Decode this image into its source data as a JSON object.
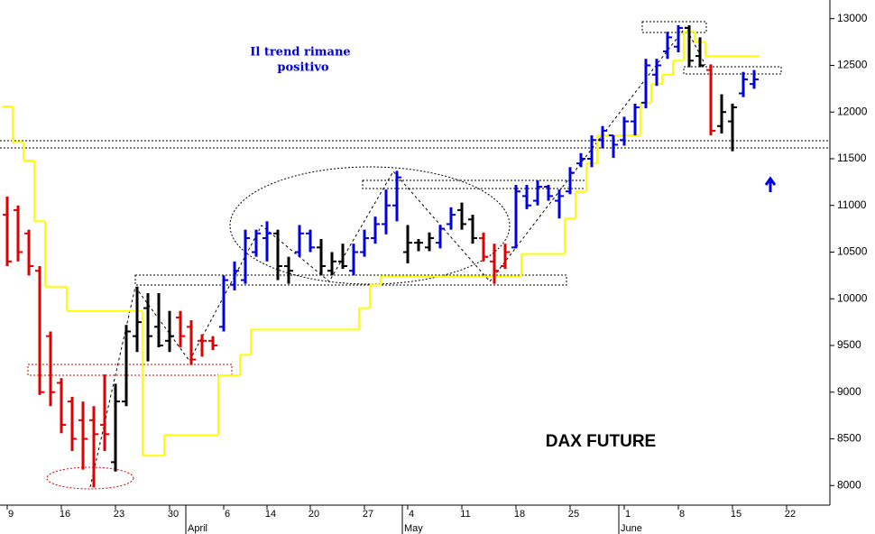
{
  "chart_data": {
    "type": "ohlc",
    "title": "DAX FUTURE",
    "annotation": [
      "Il trend rimane",
      "positivo"
    ],
    "categories": [
      "9",
      null,
      null,
      null,
      null,
      "16",
      null,
      null,
      null,
      null,
      "23",
      null,
      null,
      null,
      null,
      "30",
      null,
      null,
      null,
      null,
      "6",
      null,
      null,
      null,
      "14",
      null,
      null,
      null,
      "20",
      null,
      null,
      null,
      null,
      "27",
      null,
      null,
      null,
      "4",
      null,
      null,
      null,
      null,
      "11",
      null,
      null,
      null,
      null,
      "18",
      null,
      null,
      null,
      null,
      "25",
      null,
      null,
      null,
      null,
      "1",
      null,
      null,
      null,
      null,
      "8",
      null,
      null,
      null,
      null,
      "15",
      null,
      null,
      null,
      null,
      "22",
      null
    ],
    "month_labels": [
      {
        "label": "April",
        "index": 17
      },
      {
        "label": "May",
        "index": 37
      },
      {
        "label": "June",
        "index": 57
      }
    ],
    "open": [
      10900,
      10950,
      10700,
      10300,
      9600,
      9100,
      8900,
      8700,
      8700,
      8650,
      8250,
      8900,
      9600,
      9900,
      9700,
      9550,
      9800,
      9700,
      9550,
      9550,
      9700,
      10150,
      10200,
      10500,
      10650,
      10700,
      10350,
      10500,
      10700,
      10550,
      10300,
      10400,
      10300,
      10500,
      10650,
      10800,
      11000,
      10500,
      10600,
      10550,
      10600,
      10800,
      10950,
      10850,
      10650,
      10400,
      10350,
      10550,
      11100,
      11050,
      11200,
      11050,
      11150,
      11450,
      11500,
      11700,
      11750,
      11700,
      11900,
      12100,
      12400,
      12650,
      12700,
      12900,
      12600,
      12450,
      11850,
      11900,
      12200,
      12300,
      null,
      null,
      null,
      null
    ],
    "high": [
      11095,
      11000,
      10740,
      10350,
      9650,
      9150,
      8950,
      8900,
      8850,
      9190,
      9090,
      9720,
      10130,
      10060,
      10060,
      9870,
      9870,
      9770,
      9620,
      9600,
      10250,
      10400,
      10740,
      10740,
      10830,
      10740,
      10450,
      10790,
      10740,
      10640,
      10500,
      10590,
      10590,
      10740,
      10880,
      11170,
      11370,
      10790,
      10640,
      10710,
      10790,
      10980,
      11030,
      10900,
      10710,
      10590,
      10590,
      11220,
      11220,
      11270,
      11220,
      11170,
      11410,
      11560,
      11750,
      11850,
      11750,
      11950,
      12090,
      12570,
      12570,
      12860,
      12930,
      12930,
      12800,
      12510,
      12190,
      12090,
      12430,
      12450,
      null,
      null,
      null,
      null
    ],
    "low": [
      10350,
      10400,
      10250,
      8970,
      8850,
      8560,
      8370,
      8170,
      7980,
      8370,
      8150,
      8850,
      9430,
      9330,
      9480,
      9430,
      9480,
      9290,
      9380,
      9450,
      9650,
      10090,
      10160,
      10450,
      10400,
      10200,
      10160,
      10450,
      10500,
      10250,
      10250,
      10320,
      10250,
      10450,
      10590,
      10690,
      10830,
      10380,
      10510,
      10510,
      10540,
      10740,
      10740,
      10590,
      10400,
      10160,
      10320,
      10540,
      10960,
      11000,
      11050,
      10860,
      11120,
      11410,
      11410,
      11610,
      11510,
      11640,
      11750,
      12040,
      12280,
      12570,
      12640,
      12480,
      12480,
      11750,
      11770,
      11580,
      12160,
      12250,
      null,
      null,
      null,
      null
    ],
    "close": [
      10400,
      10500,
      10350,
      9000,
      9000,
      8650,
      8500,
      8500,
      8550,
      8550,
      8900,
      9650,
      9750,
      9600,
      9500,
      9600,
      9600,
      9350,
      9550,
      9500,
      10200,
      10300,
      10650,
      10700,
      10700,
      10350,
      10300,
      10700,
      10550,
      10350,
      10400,
      10350,
      10500,
      10650,
      10800,
      11000,
      11300,
      10600,
      10600,
      10650,
      10750,
      10900,
      10800,
      10650,
      10450,
      10300,
      10500,
      11150,
      11000,
      11200,
      11100,
      11100,
      11350,
      11500,
      11700,
      11800,
      11650,
      11900,
      12050,
      12500,
      12500,
      12800,
      12900,
      12550,
      12500,
      11800,
      12000,
      12050,
      12350,
      12350,
      null,
      null,
      null,
      null
    ],
    "colors": [
      "#e00000",
      "#e00000",
      "#e00000",
      "#e00000",
      "#e00000",
      "#e00000",
      "#e00000",
      "#e00000",
      "#e00000",
      "#e00000",
      "#000000",
      "#000000",
      "#000000",
      "#000000",
      "#000000",
      "#000000",
      "#e00000",
      "#e00000",
      "#e00000",
      "#e00000",
      "#0000e0",
      "#0000e0",
      "#0000e0",
      "#0000e0",
      "#0000e0",
      "#000000",
      "#000000",
      "#0000e0",
      "#0000e0",
      "#000000",
      "#000000",
      "#000000",
      "#0000e0",
      "#0000e0",
      "#0000e0",
      "#0000e0",
      "#0000e0",
      "#000000",
      "#000000",
      "#000000",
      "#0000e0",
      "#0000e0",
      "#000000",
      "#000000",
      "#e00000",
      "#e00000",
      "#e00000",
      "#0000e0",
      "#0000e0",
      "#0000e0",
      "#0000e0",
      "#0000e0",
      "#0000e0",
      "#0000e0",
      "#0000e0",
      "#0000e0",
      "#0000e0",
      "#0000e0",
      "#0000e0",
      "#0000e0",
      "#0000e0",
      "#0000e0",
      "#0000e0",
      "#000000",
      "#000000",
      "#e00000",
      "#000000",
      "#000000",
      "#0000e0",
      "#0000e0",
      null,
      null,
      null,
      null
    ],
    "stop_line": {
      "color": "#ffff00",
      "values": [
        12060,
        11680,
        11480,
        10830,
        10130,
        10130,
        9870,
        9870,
        9870,
        9870,
        9870,
        9870,
        9870,
        8320,
        8320,
        8540,
        8540,
        8540,
        8540,
        8540,
        9180,
        9180,
        9400,
        9670,
        9670,
        9670,
        9670,
        9670,
        9670,
        9670,
        9670,
        9670,
        9670,
        9900,
        10150,
        10240,
        10240,
        10240,
        10240,
        10240,
        10240,
        10240,
        10240,
        10240,
        10240,
        10240,
        10240,
        10240,
        10480,
        10480,
        10480,
        10480,
        10860,
        11150,
        11450,
        11750,
        11750,
        11750,
        11750,
        12100,
        12300,
        12400,
        12550,
        12860,
        12750,
        12600,
        12600,
        12600,
        12600,
        12600,
        null,
        null,
        null,
        null
      ]
    },
    "ylim": [
      7790,
      13200
    ],
    "yticks": [
      8000,
      8500,
      9000,
      9500,
      10000,
      10500,
      11000,
      11500,
      12000,
      12500,
      13000
    ]
  }
}
